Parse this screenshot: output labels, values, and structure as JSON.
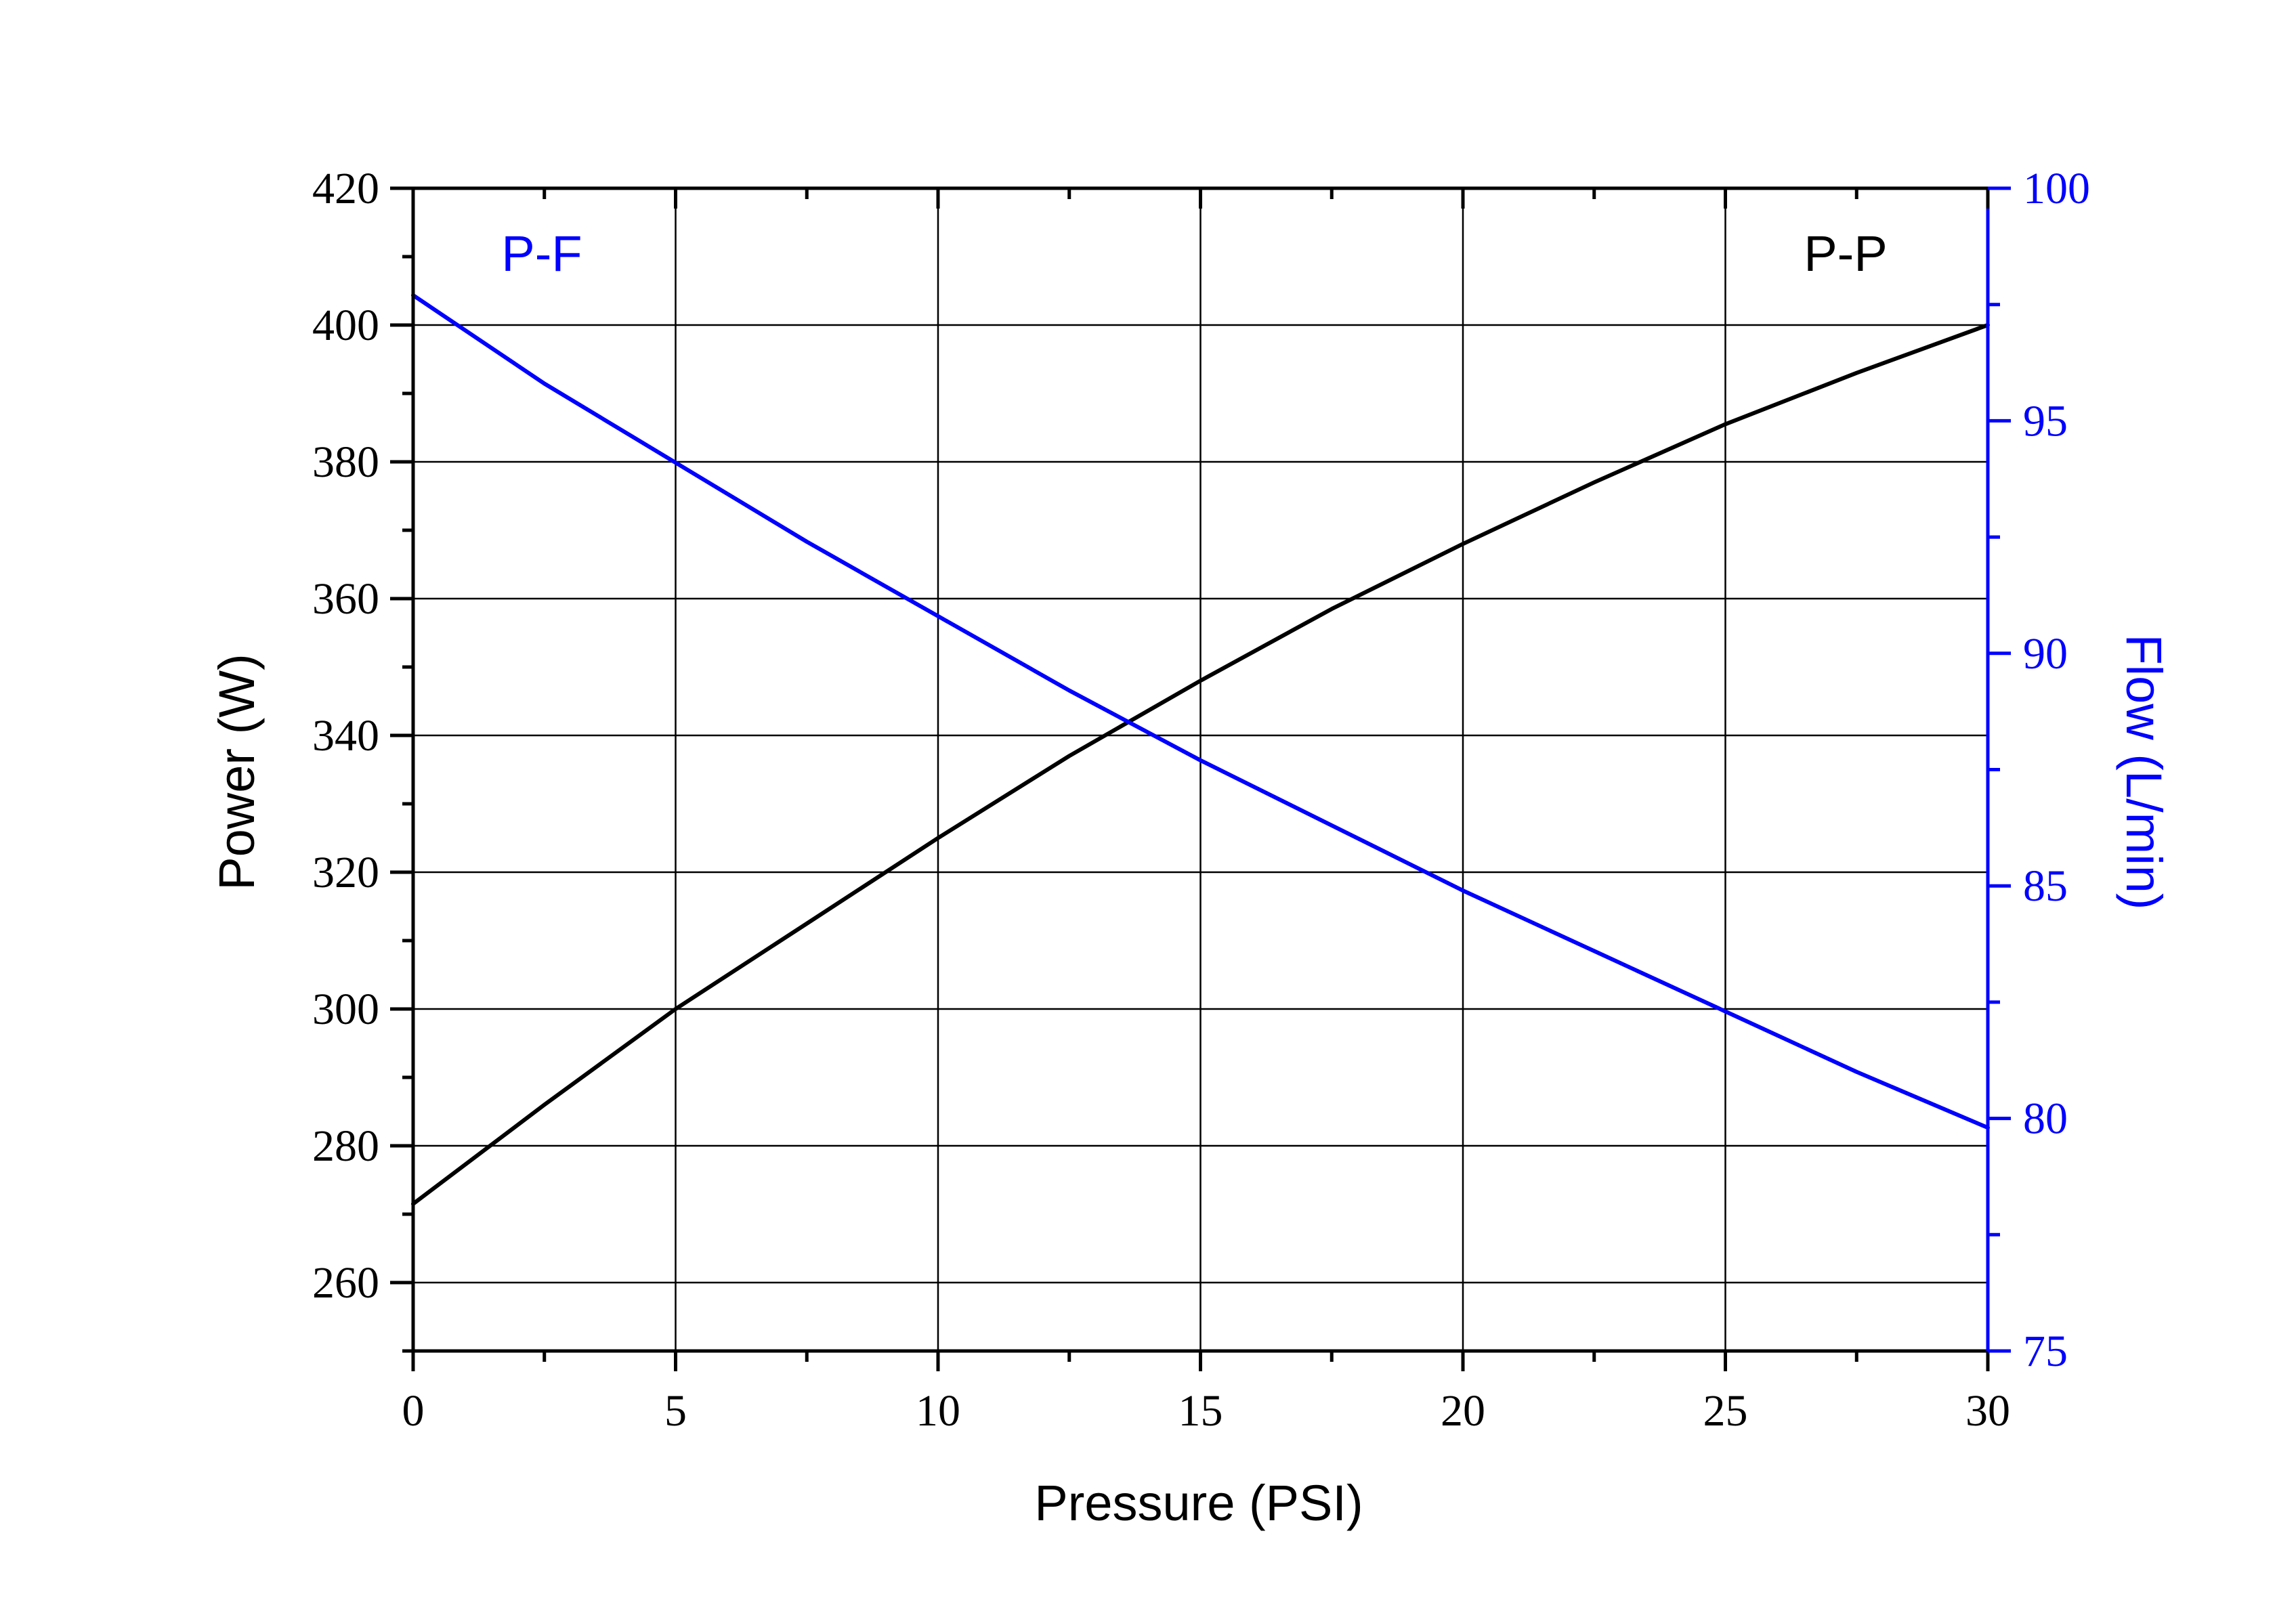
{
  "chart_data": {
    "type": "line",
    "title": "",
    "xlabel": "Pressure (PSI)",
    "ylabel_left": "Power (W)",
    "ylabel_right": "Flow (L/min)",
    "xlim": [
      0,
      30
    ],
    "ylim_left": [
      250,
      420
    ],
    "ylim_right": [
      75,
      100
    ],
    "x_ticks": [
      0,
      5,
      10,
      15,
      20,
      25,
      30
    ],
    "y_left_ticks": [
      260,
      280,
      300,
      320,
      340,
      360,
      380,
      400,
      420
    ],
    "y_right_ticks": [
      75,
      80,
      85,
      90,
      95,
      100
    ],
    "y_right_ticks_display": [
      "75",
      "80",
      "85",
      "90",
      "95",
      "100"
    ],
    "grid": true,
    "colors": {
      "left_axis": "#000000",
      "right_axis": "#0000ff",
      "grid": "#000000"
    },
    "series": [
      {
        "name": "P-P",
        "axis": "left",
        "color": "#000000",
        "x": [
          0,
          2.5,
          5,
          7.5,
          10,
          12.5,
          15,
          17.5,
          20,
          22.5,
          25,
          27.5,
          30
        ],
        "y": [
          271.5,
          286.0,
          300.0,
          312.5,
          325.0,
          337.0,
          348.0,
          358.5,
          368.0,
          377.0,
          385.5,
          393.0,
          400.0
        ]
      },
      {
        "name": "P-F",
        "axis": "right",
        "color": "#0000ff",
        "x": [
          0,
          2.5,
          5,
          7.5,
          10,
          12.5,
          15,
          17.5,
          20,
          22.5,
          25,
          27.5,
          30
        ],
        "y": [
          97.7,
          95.8,
          94.1,
          92.4,
          90.8,
          89.2,
          87.7,
          86.3,
          84.9,
          83.6,
          82.3,
          81.0,
          79.8
        ]
      }
    ]
  }
}
